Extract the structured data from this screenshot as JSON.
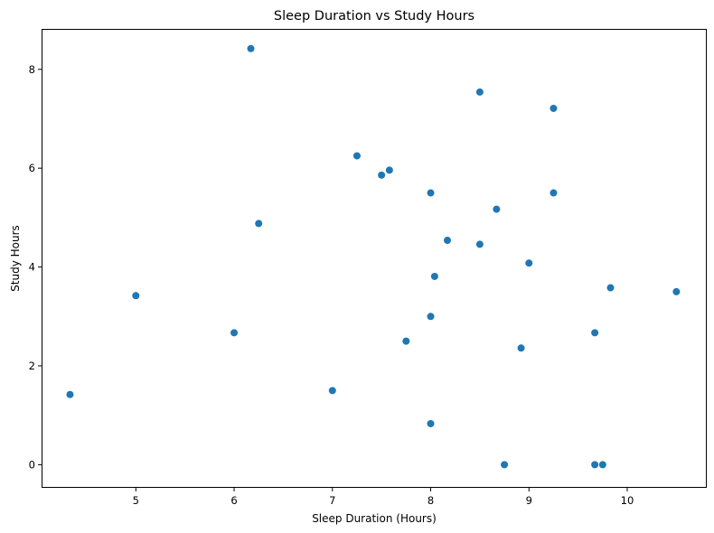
{
  "chart_data": {
    "type": "scatter",
    "title": "Sleep Duration vs Study Hours",
    "xlabel": "Sleep Duration (Hours)",
    "ylabel": "Study Hours",
    "xlim": [
      4.05,
      10.8
    ],
    "ylim": [
      -0.45,
      8.8
    ],
    "xticks": [
      5,
      6,
      7,
      8,
      9,
      10
    ],
    "yticks": [
      0,
      2,
      4,
      6,
      8
    ],
    "grid": false,
    "legend": "none",
    "color": "#1f77b4",
    "points": [
      {
        "x": 4.33,
        "y": 1.42
      },
      {
        "x": 5.0,
        "y": 3.42
      },
      {
        "x": 6.0,
        "y": 2.67
      },
      {
        "x": 6.17,
        "y": 8.42
      },
      {
        "x": 6.25,
        "y": 4.88
      },
      {
        "x": 7.0,
        "y": 1.5
      },
      {
        "x": 7.25,
        "y": 6.25
      },
      {
        "x": 7.5,
        "y": 5.86
      },
      {
        "x": 7.58,
        "y": 5.96
      },
      {
        "x": 7.75,
        "y": 2.5
      },
      {
        "x": 8.0,
        "y": 5.5
      },
      {
        "x": 8.0,
        "y": 3.0
      },
      {
        "x": 8.0,
        "y": 0.83
      },
      {
        "x": 8.04,
        "y": 3.81
      },
      {
        "x": 8.17,
        "y": 4.54
      },
      {
        "x": 8.5,
        "y": 7.54
      },
      {
        "x": 8.5,
        "y": 4.46
      },
      {
        "x": 8.67,
        "y": 5.17
      },
      {
        "x": 8.75,
        "y": 0.0
      },
      {
        "x": 8.92,
        "y": 2.36
      },
      {
        "x": 9.0,
        "y": 4.08
      },
      {
        "x": 9.25,
        "y": 7.21
      },
      {
        "x": 9.25,
        "y": 5.5
      },
      {
        "x": 9.67,
        "y": 2.67
      },
      {
        "x": 9.67,
        "y": 0.0
      },
      {
        "x": 9.75,
        "y": 0.0
      },
      {
        "x": 9.83,
        "y": 3.58
      },
      {
        "x": 10.5,
        "y": 3.5
      }
    ]
  }
}
